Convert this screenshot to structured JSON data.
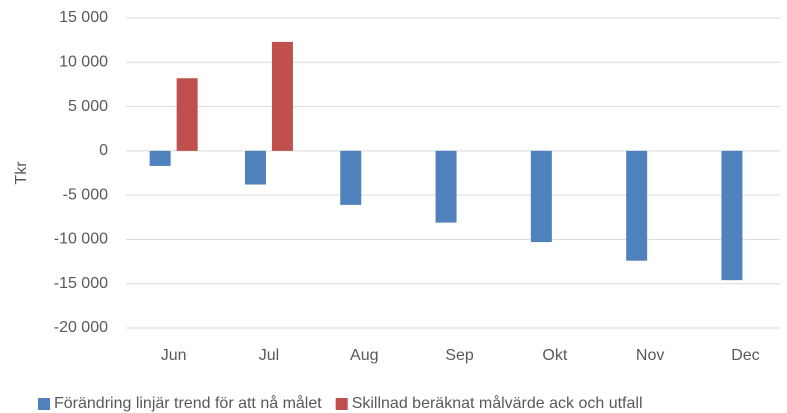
{
  "chart_data": {
    "type": "bar",
    "y_label": "Tkr",
    "categories": [
      "Jun",
      "Jul",
      "Aug",
      "Sep",
      "Okt",
      "Nov",
      "Dec"
    ],
    "series": [
      {
        "name": "Förändring linjär trend för att nå målet",
        "color": "#4f81bd",
        "values": [
          -1700,
          -3800,
          -6100,
          -8100,
          -10300,
          -12400,
          -14600
        ]
      },
      {
        "name": "Skillnad beräknat målvärde ack och utfall",
        "color": "#c0504d",
        "values": [
          8200,
          12300,
          null,
          null,
          null,
          null,
          null
        ]
      }
    ],
    "ylim": [
      -20000,
      15000
    ],
    "yticks": [
      {
        "value": -20000,
        "label": "-20 000"
      },
      {
        "value": -15000,
        "label": "-15 000"
      },
      {
        "value": -10000,
        "label": "-10 000"
      },
      {
        "value": -5000,
        "label": "-5 000"
      },
      0,
      {
        "value": 5000,
        "label": "5 000"
      },
      {
        "value": 10000,
        "label": "10 000"
      },
      {
        "value": 15000,
        "label": "15 000"
      }
    ],
    "grid": true,
    "legend": "bottom"
  }
}
